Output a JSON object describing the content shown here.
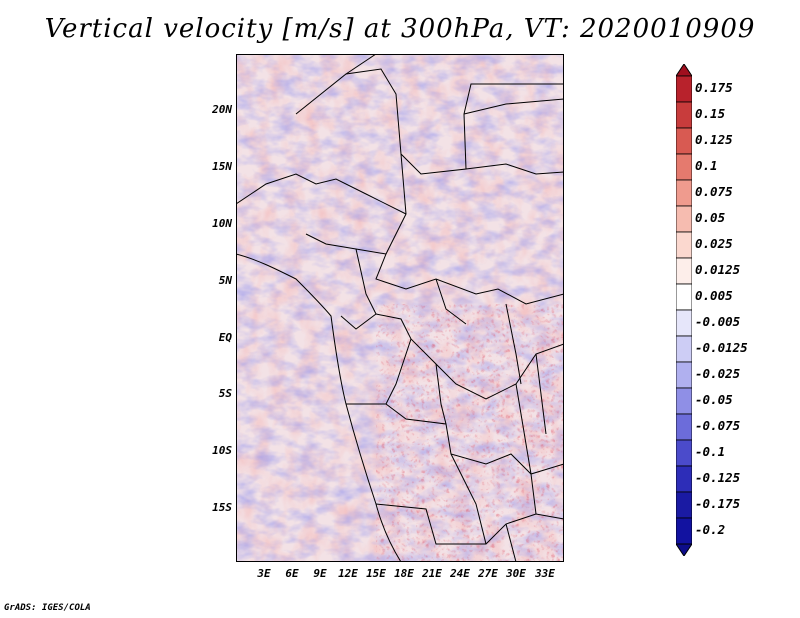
{
  "title": "Vertical velocity [m/s] at 300hPa, VT: 2020010909",
  "footer": "GrADS: IGES/COLA",
  "lat_labels": [
    "20N",
    "15N",
    "10N",
    "5N",
    "EQ",
    "5S",
    "10S",
    "15S"
  ],
  "lon_labels": [
    "3E",
    "6E",
    "9E",
    "12E",
    "15E",
    "18E",
    "21E",
    "24E",
    "27E",
    "30E",
    "33E"
  ],
  "colorbar": {
    "labels": [
      "0.175",
      "0.15",
      "0.125",
      "0.1",
      "0.075",
      "0.05",
      "0.025",
      "0.0125",
      "0.005",
      "-0.005",
      "-0.0125",
      "-0.025",
      "-0.05",
      "-0.075",
      "-0.1",
      "-0.125",
      "-0.175",
      "-0.2"
    ],
    "colors": [
      "#a00f1e",
      "#b8222c",
      "#c83c3c",
      "#d85a52",
      "#e57a6e",
      "#ef9b8e",
      "#f6bcb0",
      "#fbd8cf",
      "#fdeeea",
      "#ffffff",
      "#e6e6fa",
      "#cdcdf5",
      "#b0b0ef",
      "#8f8fe6",
      "#6c6cda",
      "#4b4bcb",
      "#2d2db8",
      "#1a1aa3",
      "#0d0d8a"
    ]
  }
}
